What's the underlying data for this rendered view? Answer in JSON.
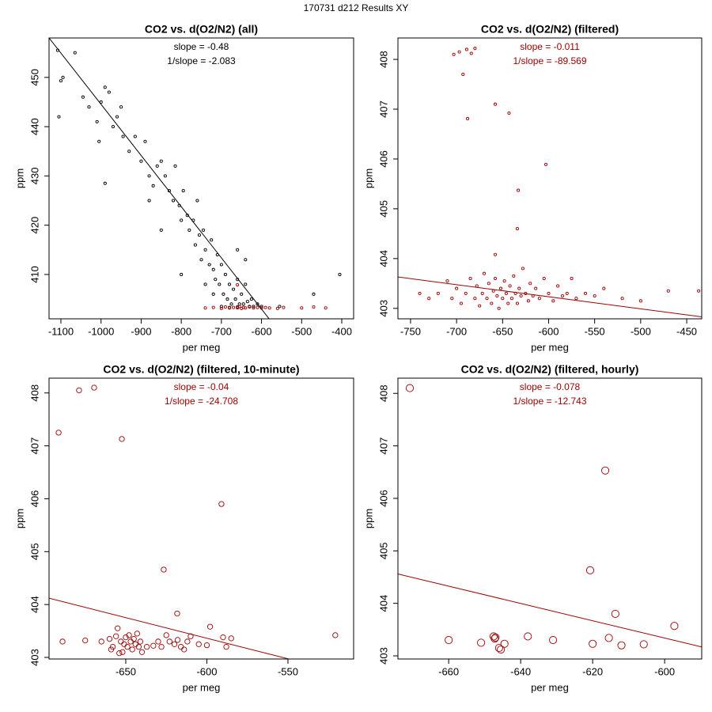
{
  "title": "170731   d212   Results XY",
  "chart_data": [
    {
      "type": "scatter",
      "title": "CO2 vs. d(O2/N2) (all)",
      "annotations": [
        "slope = -0.48",
        "1/slope = -2.083"
      ],
      "annotation_color": "#000000",
      "x_label": "per meg",
      "y_label": "ppm",
      "xlim": [
        -1129.6,
        -370.4
      ],
      "ylim": [
        401.0,
        458.0
      ],
      "xticks": [
        -1100,
        -1000,
        -900,
        -800,
        -700,
        -600,
        -500,
        -400
      ],
      "yticks": [
        410,
        420,
        430,
        440,
        450
      ],
      "fit": {
        "x": [
          -1129.6,
          -581
        ],
        "y": [
          458.0,
          401.0
        ],
        "color": "#000000"
      },
      "series": [
        {
          "color": "#000000",
          "x": [
            -1108,
            -1095,
            -1105,
            -1065,
            -1045,
            -1030,
            -1010,
            -1000,
            -990,
            -980,
            -1005,
            -970,
            -960,
            -950,
            -945,
            -930,
            -915,
            -900,
            -890,
            -880,
            -870,
            -860,
            -850,
            -840,
            -830,
            -820,
            -815,
            -805,
            -800,
            -795,
            -785,
            -780,
            -770,
            -765,
            -755,
            -750,
            -745,
            -740,
            -730,
            -725,
            -720,
            -715,
            -710,
            -705,
            -700,
            -695,
            -690,
            -685,
            -680,
            -675,
            -670,
            -665,
            -660,
            -655,
            -650,
            -645,
            -640,
            -635,
            -630,
            -625,
            -620,
            -610,
            -600,
            -700,
            -680,
            -660,
            -990,
            -1100,
            -850,
            -760,
            -740,
            -720,
            -660,
            -640,
            -800,
            -470,
            -405,
            -555,
            -880
          ],
          "y": [
            455.5,
            450,
            442,
            455,
            446,
            444,
            441,
            445,
            448,
            447,
            437,
            440,
            442,
            444,
            438,
            435,
            438,
            433,
            437,
            430,
            428,
            432,
            433,
            430,
            427,
            425,
            432,
            424,
            421,
            427,
            422,
            419,
            421,
            416,
            418,
            413,
            419,
            415,
            412,
            417,
            411,
            409,
            414,
            408,
            412,
            406,
            410,
            405,
            408,
            404,
            407,
            405,
            409,
            404,
            406,
            404,
            408,
            404.5,
            403.5,
            405,
            403.5,
            404,
            403.5,
            403.5,
            403.3,
            403.4,
            428.5,
            449.3,
            419,
            425,
            408,
            406,
            415,
            413,
            410,
            406,
            410,
            403.5,
            425
          ]
        },
        {
          "color": "#a00000",
          "x": [
            -740,
            -720,
            -700,
            -690,
            -680,
            -670,
            -660,
            -655,
            -650,
            -645,
            -640,
            -630,
            -620,
            -610,
            -600,
            -590,
            -580,
            -560,
            -545,
            -500,
            -470,
            -440,
            -660
          ],
          "y": [
            403.2,
            403.3,
            403.1,
            403.4,
            403.2,
            403.3,
            403.2,
            403.5,
            403.1,
            403.3,
            403.2,
            403.4,
            403.2,
            403.3,
            403.2,
            403.3,
            403.2,
            403.1,
            403.3,
            403.2,
            403.4,
            403.2,
            407.9
          ]
        }
      ]
    },
    {
      "type": "scatter",
      "title": "CO2 vs. d(O2/N2) (filtered)",
      "annotations": [
        "slope = -0.011",
        "1/slope = -89.569"
      ],
      "annotation_color": "#a00000",
      "x_label": "per meg",
      "y_label": "ppm",
      "xlim": [
        -763.7,
        -433.7
      ],
      "ylim": [
        402.79,
        408.43
      ],
      "xticks": [
        -750,
        -700,
        -650,
        -600,
        -550,
        -500,
        -450
      ],
      "yticks": [
        403,
        404,
        405,
        406,
        407,
        408
      ],
      "fit": {
        "x": [
          -763.7,
          -433.7
        ],
        "y": [
          403.63,
          402.83
        ],
        "color": "#a00000"
      },
      "series": [
        {
          "color": "#a00000",
          "x": [
            -703,
            -697,
            -693,
            -689,
            -684,
            -680,
            -688,
            -658,
            -643,
            -603,
            -633,
            -634,
            -658,
            -720,
            -710,
            -705,
            -700,
            -695,
            -690,
            -685,
            -680,
            -678,
            -675,
            -672,
            -670,
            -667,
            -665,
            -662,
            -660,
            -658,
            -656,
            -654,
            -652,
            -650,
            -648,
            -646,
            -644,
            -642,
            -640,
            -638,
            -636,
            -634,
            -632,
            -630,
            -628,
            -625,
            -622,
            -620,
            -617,
            -614,
            -610,
            -605,
            -600,
            -595,
            -590,
            -585,
            -580,
            -575,
            -570,
            -560,
            -550,
            -540,
            -520,
            -500,
            -470,
            -437,
            -740,
            -730
          ],
          "y": [
            408.1,
            408.15,
            407.7,
            408.2,
            408.12,
            408.22,
            406.81,
            407.1,
            406.92,
            405.89,
            405.37,
            404.6,
            404.08,
            403.3,
            403.55,
            403.2,
            403.4,
            403.1,
            403.3,
            403.6,
            403.2,
            403.45,
            403.05,
            403.3,
            403.7,
            403.2,
            403.5,
            403.1,
            403.35,
            403.6,
            403.25,
            403.0,
            403.4,
            403.2,
            403.55,
            403.3,
            403.1,
            403.45,
            403.2,
            403.65,
            403.3,
            403.1,
            403.4,
            403.25,
            403.8,
            403.3,
            403.15,
            403.5,
            403.25,
            403.4,
            403.2,
            403.6,
            403.3,
            403.15,
            403.45,
            403.25,
            403.3,
            403.6,
            403.2,
            403.3,
            403.25,
            403.4,
            403.2,
            403.15,
            403.35,
            403.35,
            403.3,
            403.2
          ]
        }
      ]
    },
    {
      "type": "scatter",
      "title": "CO2 vs. d(O2/N2) (filtered, 10-minute)",
      "annotations": [
        "slope = -0.04",
        "1/slope = -24.708"
      ],
      "annotation_color": "#a00000",
      "x_label": "per meg",
      "y_label": "ppm",
      "xlim": [
        -697.3,
        -509.5
      ],
      "ylim": [
        402.97,
        408.28
      ],
      "xticks": [
        -650,
        -600,
        -550
      ],
      "yticks": [
        403,
        404,
        405,
        406,
        407,
        408
      ],
      "fit": {
        "x": [
          -697.3,
          -549.5
        ],
        "y": [
          404.12,
          402.97
        ],
        "color": "#a00000"
      },
      "series": [
        {
          "color": "#a00000",
          "x": [
            -691.4,
            -678.8,
            -669.5,
            -652.4,
            -591,
            -626.6,
            -618.3,
            -520.8,
            -689,
            -675,
            -665,
            -660,
            -658,
            -656,
            -655,
            -653,
            -652,
            -651,
            -650,
            -649,
            -648,
            -647,
            -646,
            -645,
            -644,
            -643,
            -642,
            -641,
            -640,
            -637,
            -633,
            -630,
            -628,
            -625,
            -623,
            -620,
            -618,
            -616,
            -614,
            -612,
            -610,
            -605,
            -600,
            -598,
            -590,
            -588,
            -585,
            -659,
            -654
          ],
          "y": [
            407.25,
            408.05,
            408.1,
            407.13,
            405.9,
            404.66,
            403.83,
            403.42,
            403.3,
            403.32,
            403.3,
            403.35,
            403.2,
            403.4,
            403.55,
            403.3,
            403.1,
            403.25,
            403.38,
            403.2,
            403.42,
            403.3,
            403.15,
            403.35,
            403.25,
            403.45,
            403.2,
            403.3,
            403.1,
            403.2,
            403.22,
            403.3,
            403.2,
            403.42,
            403.3,
            403.25,
            403.33,
            403.2,
            403.15,
            403.3,
            403.4,
            403.25,
            403.23,
            403.58,
            403.38,
            403.2,
            403.36,
            403.15,
            403.08
          ]
        }
      ]
    },
    {
      "type": "scatter",
      "title": "CO2 vs. d(O2/N2) (filtered, hourly)",
      "annotations": [
        "slope = -0.078",
        "1/slope = -12.743"
      ],
      "annotation_color": "#a00000",
      "x_label": "per meg",
      "y_label": "ppm",
      "xlim": [
        -674.1,
        -589.7
      ],
      "ylim": [
        402.94,
        408.29
      ],
      "xticks": [
        -660,
        -640,
        -620,
        -600
      ],
      "yticks": [
        403,
        404,
        405,
        406,
        407,
        408
      ],
      "fit": {
        "x": [
          -674.1,
          -589.7
        ],
        "y": [
          404.56,
          403.17
        ],
        "color": "#a00000"
      },
      "series": [
        {
          "color": "#a00000",
          "x": [
            -670.8,
            -616.5,
            -620.7,
            -613.7,
            -660,
            -651,
            -647.5,
            -647,
            -646,
            -644.5,
            -638,
            -631,
            -620,
            -615.5,
            -612,
            -605.8,
            -597.3,
            -647.2,
            -645.5
          ],
          "y": [
            408.1,
            406.53,
            404.63,
            403.8,
            403.3,
            403.25,
            403.37,
            403.35,
            403.15,
            403.23,
            403.37,
            403.3,
            403.23,
            403.34,
            403.2,
            403.22,
            403.57,
            403.33,
            403.12
          ]
        }
      ]
    }
  ]
}
